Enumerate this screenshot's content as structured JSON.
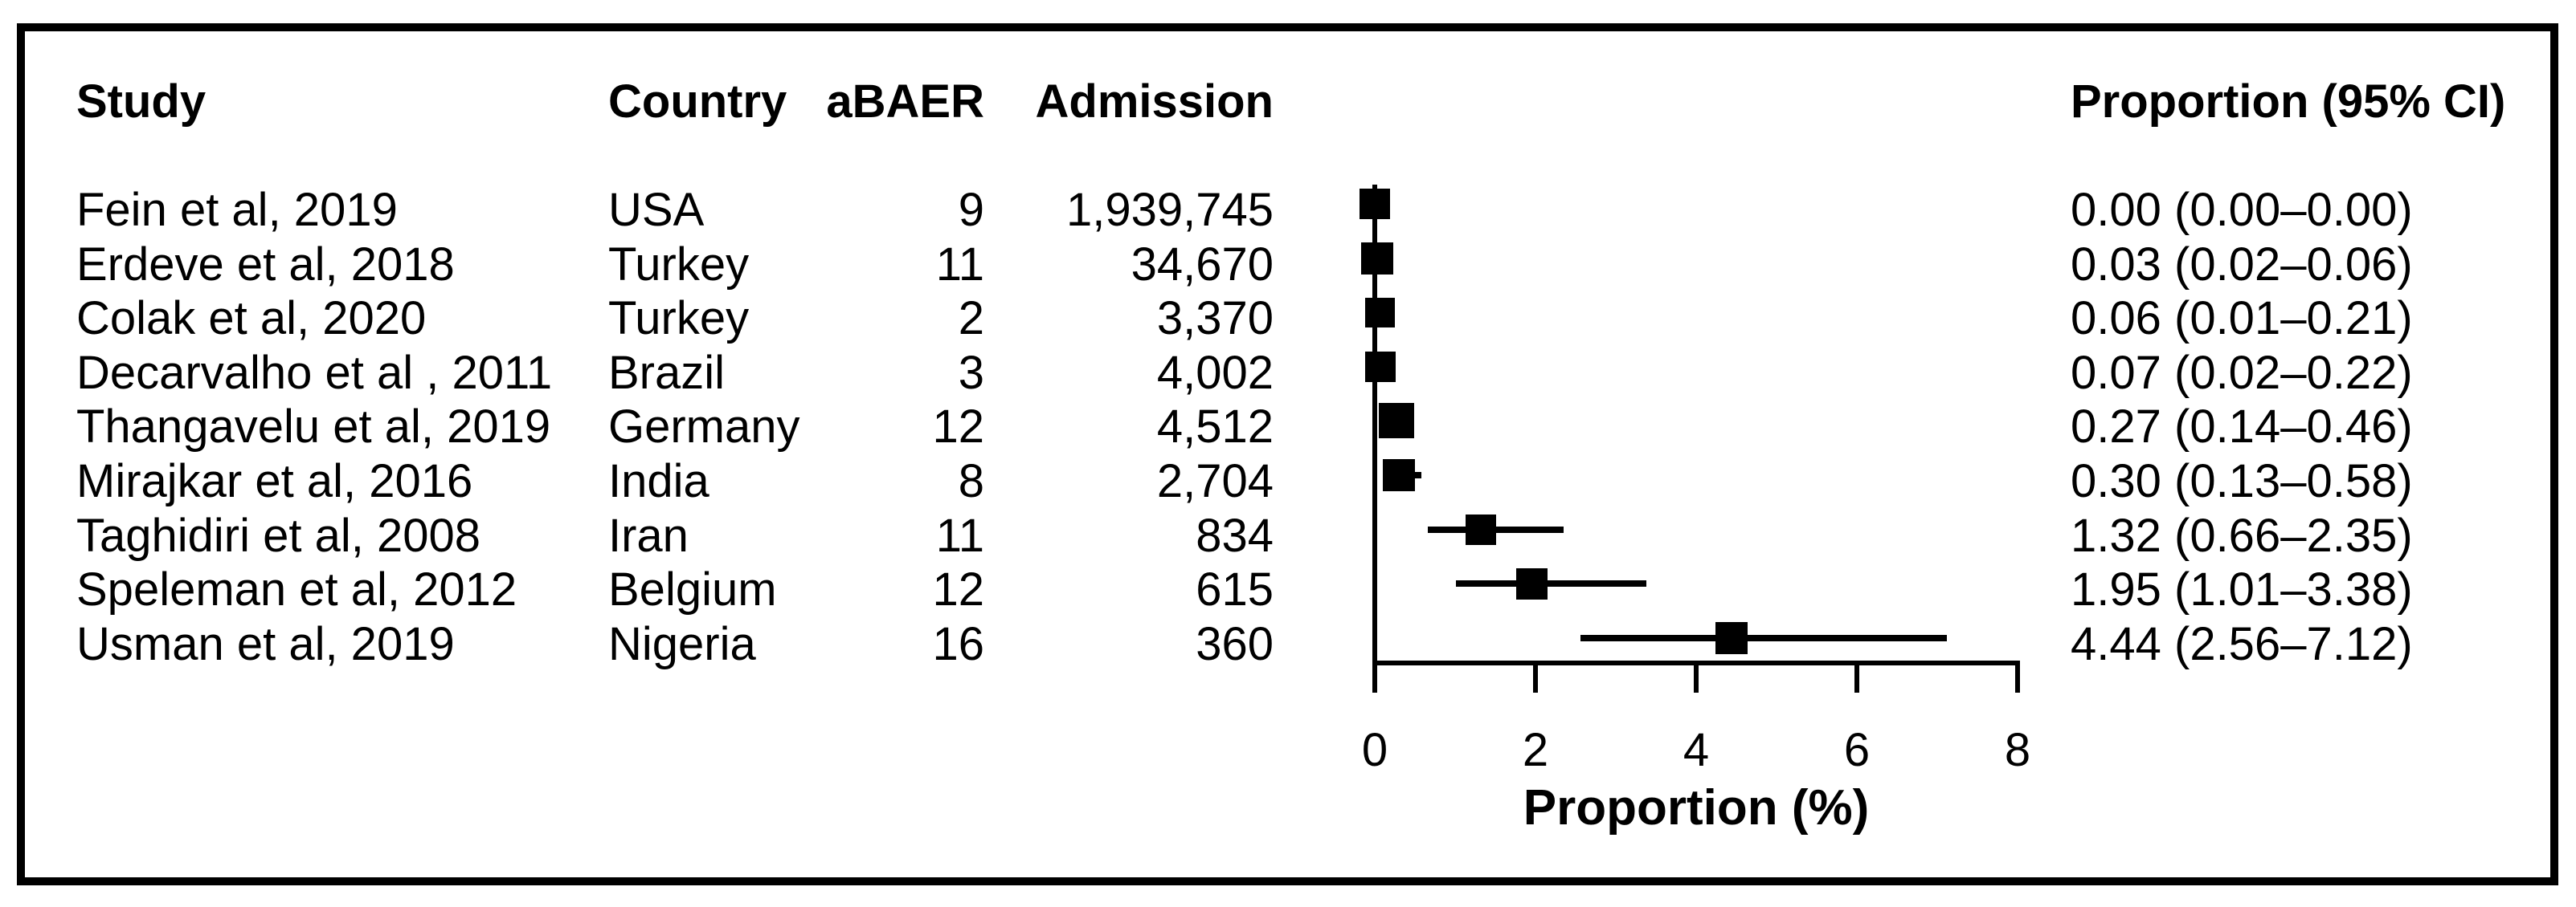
{
  "colors": {
    "text": "#000000",
    "marker": "#000000",
    "ci_line": "#000000",
    "background": "#ffffff",
    "figure_border": "#000000"
  },
  "chart_data": {
    "type": "scatter",
    "subtype": "forest-plot",
    "title": "",
    "xlabel": "Proportion (%)",
    "xlim": [
      0,
      8
    ],
    "xticks": [
      0,
      2,
      4,
      6,
      8
    ],
    "grid": false,
    "legend_position": "none",
    "columns": {
      "study": "Study",
      "country": "Country",
      "abaer": "aBAER",
      "admission": "Admission",
      "proportion_ci": "Proportion (95% CI)"
    },
    "rows": [
      {
        "study": "Fein et al, 2019",
        "country": "USA",
        "abaer": "9",
        "admission": "1,939,745",
        "proportion": 0.0,
        "ci_low": 0.0,
        "ci_high": 0.0,
        "ci_text": "0.00 (0.00–0.00)",
        "marker_size": 38
      },
      {
        "study": "Erdeve et al, 2018",
        "country": "Turkey",
        "abaer": "11",
        "admission": "34,670",
        "proportion": 0.03,
        "ci_low": 0.02,
        "ci_high": 0.06,
        "ci_text": "0.03 (0.02–0.06)",
        "marker_size": 40
      },
      {
        "study": "Colak et al, 2020",
        "country": "Turkey",
        "abaer": "2",
        "admission": "3,370",
        "proportion": 0.06,
        "ci_low": 0.01,
        "ci_high": 0.21,
        "ci_text": "0.06 (0.01–0.21)",
        "marker_size": 37
      },
      {
        "study": "Decarvalho et al , 2011",
        "country": "Brazil",
        "abaer": "3",
        "admission": "4,002",
        "proportion": 0.07,
        "ci_low": 0.02,
        "ci_high": 0.22,
        "ci_text": "0.07 (0.02–0.22)",
        "marker_size": 38
      },
      {
        "study": "Thangavelu et al, 2019",
        "country": "Germany",
        "abaer": "12",
        "admission": "4,512",
        "proportion": 0.27,
        "ci_low": 0.14,
        "ci_high": 0.46,
        "ci_text": "0.27 (0.14–0.46)",
        "marker_size": 44
      },
      {
        "study": "Mirajkar et al, 2016",
        "country": "India",
        "abaer": "8",
        "admission": "2,704",
        "proportion": 0.3,
        "ci_low": 0.13,
        "ci_high": 0.58,
        "ci_text": "0.30 (0.13–0.58)",
        "marker_size": 40
      },
      {
        "study": "Taghidiri et al, 2008",
        "country": "Iran",
        "abaer": "11",
        "admission": "834",
        "proportion": 1.32,
        "ci_low": 0.66,
        "ci_high": 2.35,
        "ci_text": "1.32 (0.66–2.35)",
        "marker_size": 38
      },
      {
        "study": "Speleman et al, 2012",
        "country": "Belgium",
        "abaer": "12",
        "admission": "615",
        "proportion": 1.95,
        "ci_low": 1.01,
        "ci_high": 3.38,
        "ci_text": "1.95 (1.01–3.38)",
        "marker_size": 39
      },
      {
        "study": "Usman et al, 2019",
        "country": "Nigeria",
        "abaer": "16",
        "admission": "360",
        "proportion": 4.44,
        "ci_low": 2.56,
        "ci_high": 7.12,
        "ci_text": "4.44 (2.56–7.12)",
        "marker_size": 40
      }
    ]
  }
}
